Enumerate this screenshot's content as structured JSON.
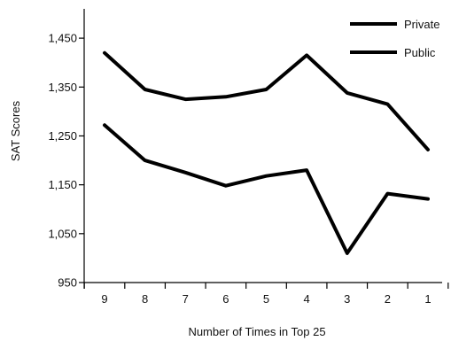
{
  "chart_data": {
    "type": "line",
    "xlabel": "Number of Times in Top 25",
    "ylabel": "SAT Scores",
    "categories": [
      "9",
      "8",
      "7",
      "6",
      "5",
      "4",
      "3",
      "2",
      "1"
    ],
    "ylim": [
      950,
      1510
    ],
    "yticks": [
      950,
      1050,
      1150,
      1250,
      1350,
      1450
    ],
    "ytick_labels": [
      "950",
      "1,050",
      "1,150",
      "1,250",
      "1,350",
      "1,450"
    ],
    "legend_position": "top-right",
    "grid": false,
    "series": [
      {
        "name": "Private",
        "color": "#000000",
        "values": [
          1420,
          1345,
          1325,
          1330,
          1345,
          1415,
          1338,
          1315,
          1222
        ]
      },
      {
        "name": "Public",
        "color": "#000000",
        "values": [
          1272,
          1200,
          1175,
          1148,
          1168,
          1180,
          1010,
          1132,
          1121
        ]
      }
    ]
  }
}
